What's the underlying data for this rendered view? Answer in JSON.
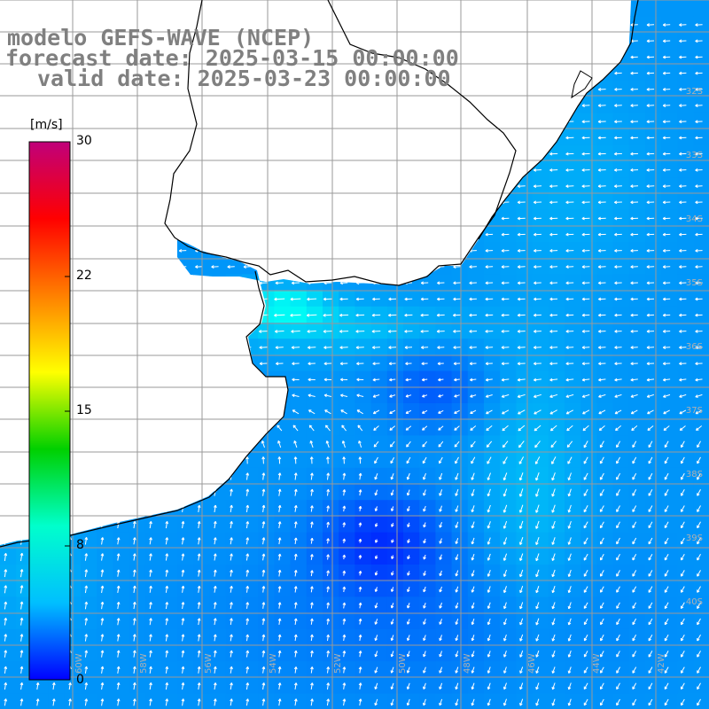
{
  "title": {
    "line1": "modelo GEFS-WAVE (NCEP)",
    "line2": "forecast date: 2025-03-15 00:00:00",
    "line3": "valid date: 2025-03-23 00:00:00"
  },
  "colorbar": {
    "unit": "[m/s]",
    "min": 0,
    "max": 30,
    "ticks": [
      "30",
      "22",
      "15",
      "8",
      "0"
    ],
    "stops": [
      "#0000ff",
      "#00bfff",
      "#00ffcc",
      "#00d000",
      "#ffff00",
      "#ff8000",
      "#ff0000",
      "#c0007a"
    ]
  },
  "map": {
    "lon_labels": [
      "60W",
      "58W",
      "56W",
      "54W",
      "52W",
      "50W",
      "48W",
      "46W",
      "44W",
      "42W"
    ],
    "lat_labels": [
      "32S",
      "33S",
      "34S",
      "35S",
      "36S",
      "37S",
      "38S",
      "39S",
      "40S"
    ],
    "colors": {
      "land": "#ffffff",
      "coast": "#000000",
      "grid": "#9a9a9a",
      "arrow": "#ffffff",
      "label": "#b0b0b0"
    }
  }
}
